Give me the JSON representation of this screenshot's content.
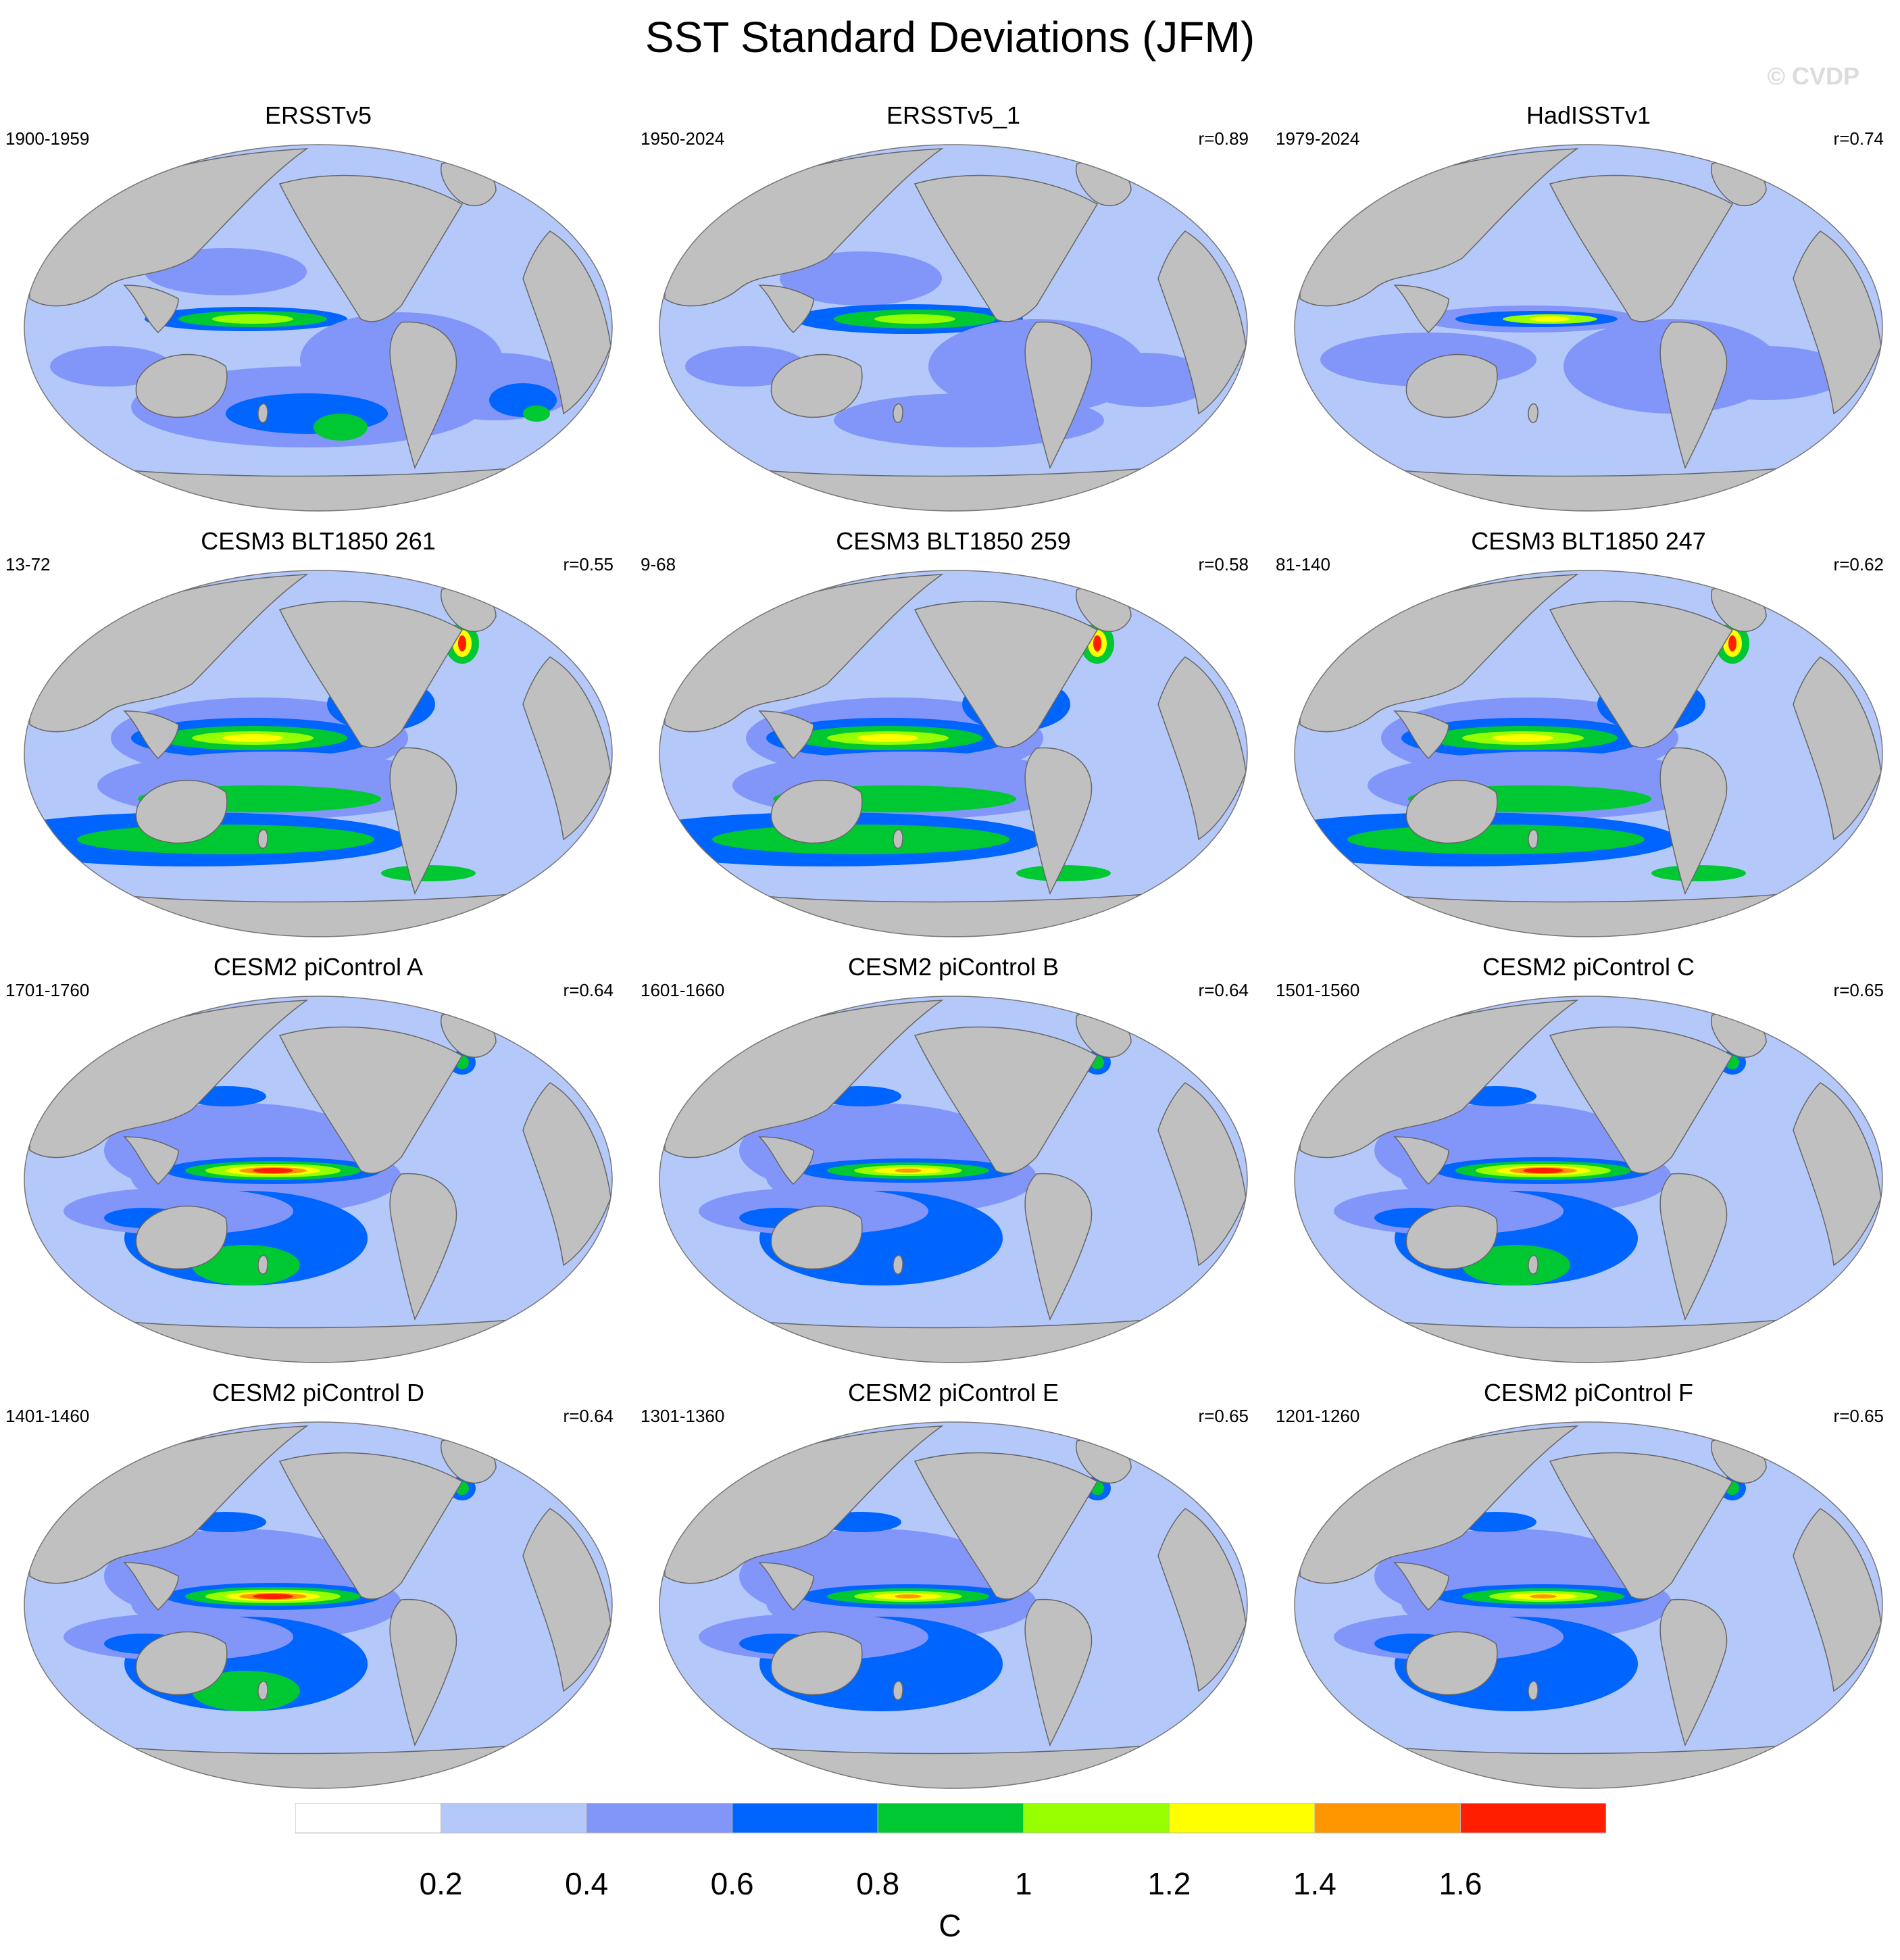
{
  "title": "SST Standard Deviations (JFM)",
  "watermark": "© CVDP",
  "colors": {
    "levels": [
      "#ffffff",
      "#b4c8fa",
      "#8296fa",
      "#0064ff",
      "#00c832",
      "#96ff00",
      "#ffff00",
      "#ff9600",
      "#ff1e00"
    ],
    "land": "#c0c0c0",
    "coast": "#666666"
  },
  "panels": [
    {
      "title": "ERSSTv5",
      "years": "1900-1959",
      "corr": "",
      "pattern": "obs_a"
    },
    {
      "title": "ERSSTv5_1",
      "years": "1950-2024",
      "corr": "r=0.89",
      "pattern": "obs_b"
    },
    {
      "title": "HadISSTv1",
      "years": "1979-2024",
      "corr": "r=0.74",
      "pattern": "obs_c"
    },
    {
      "title": "CESM3 BLT1850 261",
      "years": "13-72",
      "corr": "r=0.55",
      "pattern": "cesm3"
    },
    {
      "title": "CESM3 BLT1850 259",
      "years": "9-68",
      "corr": "r=0.58",
      "pattern": "cesm3"
    },
    {
      "title": "CESM3 BLT1850 247",
      "years": "81-140",
      "corr": "r=0.62",
      "pattern": "cesm3"
    },
    {
      "title": "CESM2 piControl A",
      "years": "1701-1760",
      "corr": "r=0.64",
      "pattern": "cesm2_strong"
    },
    {
      "title": "CESM2 piControl B",
      "years": "1601-1660",
      "corr": "r=0.64",
      "pattern": "cesm2_mid"
    },
    {
      "title": "CESM2 piControl C",
      "years": "1501-1560",
      "corr": "r=0.65",
      "pattern": "cesm2_strong"
    },
    {
      "title": "CESM2 piControl D",
      "years": "1401-1460",
      "corr": "r=0.64",
      "pattern": "cesm2_strong"
    },
    {
      "title": "CESM2 piControl E",
      "years": "1301-1360",
      "corr": "r=0.65",
      "pattern": "cesm2_mid"
    },
    {
      "title": "CESM2 piControl F",
      "years": "1201-1260",
      "corr": "r=0.65",
      "pattern": "cesm2_mid"
    }
  ],
  "colorbar": {
    "labels": [
      "0.2",
      "0.4",
      "0.6",
      "0.8",
      "1",
      "1.2",
      "1.4",
      "1.6"
    ],
    "unit": "C"
  }
}
